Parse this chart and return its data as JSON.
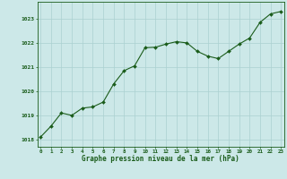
{
  "x": [
    0,
    1,
    2,
    3,
    4,
    5,
    6,
    7,
    8,
    9,
    10,
    11,
    12,
    13,
    14,
    15,
    16,
    17,
    18,
    19,
    20,
    21,
    22,
    23
  ],
  "y": [
    1018.1,
    1018.55,
    1019.1,
    1019.0,
    1019.3,
    1019.35,
    1019.55,
    1020.3,
    1020.85,
    1021.05,
    1021.8,
    1021.82,
    1021.95,
    1022.05,
    1022.0,
    1021.65,
    1021.45,
    1021.35,
    1021.65,
    1021.95,
    1022.2,
    1022.85,
    1023.2,
    1023.3
  ],
  "line_color": "#1a5c1a",
  "marker_color": "#1a5c1a",
  "bg_color": "#cce8e8",
  "grid_color": "#aad0d0",
  "xlabel": "Graphe pression niveau de la mer (hPa)",
  "xlabel_color": "#1a5c1a",
  "tick_color": "#1a5c1a",
  "yticks": [
    1018,
    1019,
    1020,
    1021,
    1022,
    1023
  ],
  "xticks": [
    0,
    1,
    2,
    3,
    4,
    5,
    6,
    7,
    8,
    9,
    10,
    11,
    12,
    13,
    14,
    15,
    16,
    17,
    18,
    19,
    20,
    21,
    22,
    23
  ],
  "ylim": [
    1017.7,
    1023.7
  ],
  "xlim": [
    -0.3,
    23.3
  ]
}
